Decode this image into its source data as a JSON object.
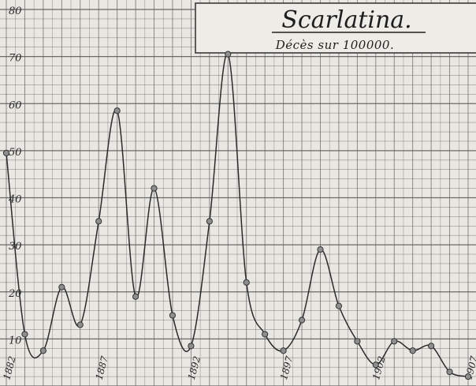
{
  "chart_data": {
    "type": "line",
    "title": "Scarlatina.",
    "subtitle": "Décès sur 100000.",
    "xlabel": "",
    "ylabel": "",
    "ylim": [
      0,
      80
    ],
    "xlim": [
      1882,
      1907
    ],
    "yticks": [
      "10",
      "20",
      "30",
      "40",
      "50",
      "60",
      "70",
      "80"
    ],
    "xticks": [
      {
        "year": 1882,
        "label": "1882"
      },
      {
        "year": 1887,
        "label": "1887"
      },
      {
        "year": 1892,
        "label": "1892"
      },
      {
        "year": 1897,
        "label": "1897"
      },
      {
        "year": 1902,
        "label": "1902"
      },
      {
        "year": 1907,
        "label": "1907"
      }
    ],
    "grid": true,
    "series": [
      {
        "x": [
          1882,
          1883,
          1884,
          1885,
          1886,
          1887,
          1888,
          1889,
          1890,
          1891,
          1892,
          1893,
          1894,
          1895,
          1896,
          1897,
          1898,
          1899,
          1900,
          1901,
          1902,
          1903,
          1904,
          1905,
          1906,
          1907
        ],
        "y": [
          49.5,
          11,
          7.5,
          21,
          13,
          35,
          58.5,
          19,
          42,
          15,
          8.5,
          35,
          70.5,
          22,
          11,
          7.5,
          14,
          29,
          17,
          9.5,
          4.5,
          9.5,
          7.5,
          8.5,
          3,
          2
        ]
      }
    ],
    "colors": {
      "line": "#2b2b2b",
      "point": "#8e8e8e",
      "grid": "#5c5c5c",
      "paper": "#e9e7e2"
    }
  }
}
